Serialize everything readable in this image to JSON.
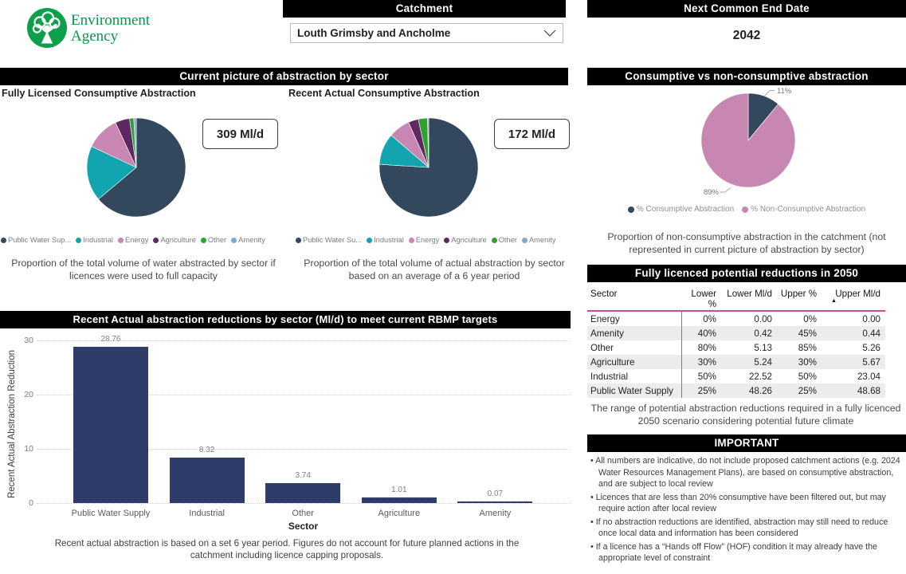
{
  "header": {
    "logo": {
      "line1": "Environment",
      "line2": "Agency"
    },
    "catchment_label": "Catchment",
    "catchment_selected": "Louth Grimsby and Ancholme",
    "next_common_end_date_label": "Next Common End Date",
    "next_common_end_date_value": "2042"
  },
  "sections": {
    "current_picture_title": "Current picture of abstraction by sector"
  },
  "important": {
    "title": "IMPORTANT",
    "bullets": [
      "All numbers are indicative, do not include proposed catchment actions (e.g. 2024 Water Resources Management Plans), are based on consumptive abstraction, and are subject to local review",
      "Licences that are less than 20% consumptive have been filtered out, but may require action after local review",
      "If no abstraction reductions are identified, abstraction may still need to reduce once local data and information has been considered",
      "If a licence has a “Hands off Flow” (HOF) condition it may already have the appropriate level of constraint"
    ]
  },
  "chart_data": [
    {
      "id": "fully-licensed-pie",
      "type": "pie",
      "title": "Fully Licensed Consumptive Abstraction",
      "total_label": "309 Ml/d",
      "labels": [
        "Public Water Supply",
        "Industrial",
        "Energy",
        "Agriculture",
        "Other",
        "Amenity"
      ],
      "legend_labels": [
        "Public Water Sup...",
        "Industrial",
        "Energy",
        "Agriculture",
        "Other",
        "Amenity"
      ],
      "values_pct": [
        63.9,
        18.1,
        11.1,
        4.7,
        1.4,
        0.8
      ],
      "colors": [
        "#33485C",
        "#12A4AF",
        "#C886B2",
        "#5E2963",
        "#2FA22F",
        "#7FA8CF"
      ],
      "caption": "Proportion of the total volume of water abstracted by sector if licences were used to full capacity"
    },
    {
      "id": "recent-actual-pie",
      "type": "pie",
      "title": "Recent Actual Consumptive Abstraction",
      "total_label": "172 Ml/d",
      "labels": [
        "Public Water Supply",
        "Industrial",
        "Energy",
        "Agriculture",
        "Other",
        "Amenity"
      ],
      "legend_labels": [
        "Public Water Su...",
        "Industrial",
        "Energy",
        "Agriculture",
        "Other",
        "Amenity"
      ],
      "values_pct": [
        76.0,
        10.3,
        7.0,
        3.3,
        3.0,
        0.4
      ],
      "colors": [
        "#33485C",
        "#12A4AF",
        "#C886B2",
        "#5E2963",
        "#2FA22F",
        "#7FA8CF"
      ],
      "caption": "Proportion of the total volume of actual abstraction by sector based on an average of a 6 year period"
    },
    {
      "id": "consumptive-pie",
      "type": "pie",
      "title": "Consumptive vs non-consumptive abstraction",
      "labels": [
        "% Consumptive Abstraction",
        "% Non-Consumptive Abstraction"
      ],
      "values_pct": [
        11,
        89
      ],
      "data_labels": [
        "11%",
        "89%"
      ],
      "colors": [
        "#33485C",
        "#C886B2"
      ],
      "caption": "Proportion of non-consumptive abstraction in the catchment (not represented in current picture of abstraction by sector)"
    },
    {
      "id": "rbmp-bar",
      "type": "bar",
      "title": "Recent Actual abstraction reductions by sector (Ml/d) to meet current RBMP targets",
      "categories": [
        "Public Water Supply",
        "Industrial",
        "Other",
        "Agriculture",
        "Amenity"
      ],
      "values": [
        28.76,
        8.32,
        3.74,
        1.01,
        0.07
      ],
      "value_labels": [
        "28.76",
        "8.32",
        "3.74",
        "1.01",
        "0.07"
      ],
      "xlabel": "Sector",
      "ylabel": "Recent Actual Abstraction Reduction",
      "ylim": [
        0,
        30
      ],
      "yticks": [
        0,
        10,
        20,
        30
      ],
      "bar_color": "#2F3B69",
      "grid": true,
      "caption": "Recent actual abstraction is based on a set 6 year period. Figures do not account for future planned actions in the catchment including licence capping proposals."
    },
    {
      "id": "reductions-table",
      "type": "table",
      "title": "Fully licenced potential reductions in 2050",
      "columns": [
        "Sector",
        "Lower %",
        "Lower Ml/d",
        "Upper %",
        "Upper Ml/d"
      ],
      "sorted_column": "Upper Ml/d",
      "sort_direction": "ascending",
      "rows": [
        [
          "Energy",
          "0%",
          "0.00",
          "0%",
          "0.00"
        ],
        [
          "Amenity",
          "40%",
          "0.42",
          "45%",
          "0.44"
        ],
        [
          "Other",
          "80%",
          "5.13",
          "85%",
          "5.26"
        ],
        [
          "Agriculture",
          "30%",
          "5.24",
          "30%",
          "5.67"
        ],
        [
          "Industrial",
          "50%",
          "22.52",
          "50%",
          "23.04"
        ],
        [
          "Public Water Supply",
          "25%",
          "48.26",
          "25%",
          "48.68"
        ]
      ],
      "accent_line_color": "#D04A9B",
      "alt_row_color": "#ECECEC",
      "caption": "The range of potential abstraction reductions required in a fully licenced 2050 scenario considering potential future climate"
    }
  ]
}
